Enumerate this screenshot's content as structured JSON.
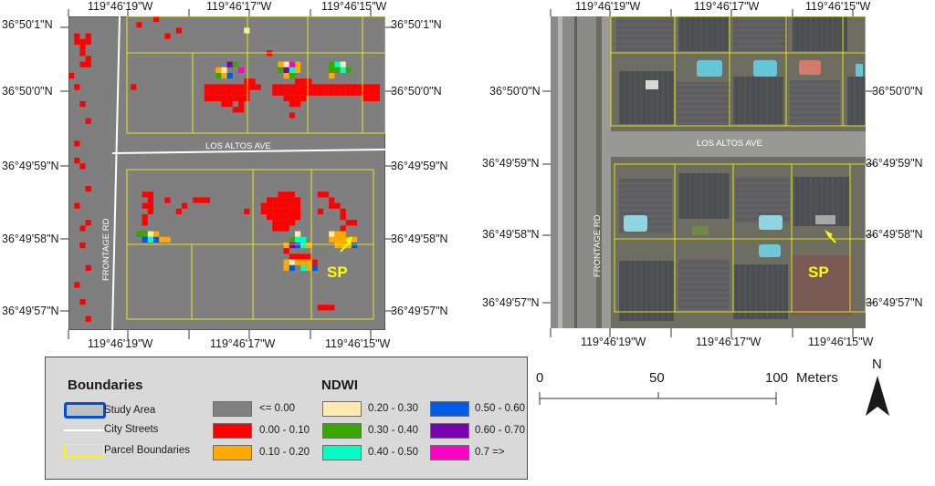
{
  "left_map": {
    "lon_top": [
      "119°46'19\"W",
      "119°46'17\"W",
      "119°46'15\"W"
    ],
    "lon_bottom": [
      "119°46'19\"W",
      "119°46'17\"W",
      "119°46'15\"W"
    ],
    "lat_left": [
      "36°50'1\"N",
      "36°50'0\"N",
      "36°49'59\"N",
      "36°49'58\"N",
      "36°49'57\"N"
    ],
    "lat_right": [
      "36°50'1\"N",
      "36°50'0\"N",
      "36°49'59\"N",
      "36°49'58\"N",
      "36°49'57\"N"
    ],
    "street_ew": "LOS ALTOS AVE",
    "street_ns": "FRONTAGE RD",
    "marker": "SP"
  },
  "right_map": {
    "lon_top": [
      "119°46'19\"W",
      "119°46'17\"W",
      "119°46'15\"W"
    ],
    "lon_bottom": [
      "119°46'19\"W",
      "119°46'17\"W",
      "119°46'15\"W"
    ],
    "lat_left": [
      "36°50'0\"N",
      "36°49'59\"N",
      "36°49'58\"N",
      "36°49'57\"N"
    ],
    "lat_right": [
      "36°50'0\"N",
      "36°49'59\"N",
      "36°49'58\"N",
      "36°49'57\"N"
    ],
    "street_ew": "LOS ALTOS AVE",
    "street_ns": "FRONTAGE RD",
    "marker": "SP"
  },
  "legend": {
    "boundaries_title": "Boundaries",
    "study_area": "Study Area",
    "city_streets": "City Streets",
    "parcel_boundaries": "Parcel Boundaries",
    "ndwi_title": "NDWI",
    "classes": [
      {
        "label": "<= 0.00",
        "color": "#808080"
      },
      {
        "label": "0.00 - 0.10",
        "color": "#ff0000"
      },
      {
        "label": "0.10 - 0.20",
        "color": "#ffaa00"
      },
      {
        "label": "0.20 - 0.30",
        "color": "#ffebaf"
      },
      {
        "label": "0.30 - 0.40",
        "color": "#38a800"
      },
      {
        "label": "0.40 - 0.50",
        "color": "#00ffc5"
      },
      {
        "label": "0.50 - 0.60",
        "color": "#005ce6"
      },
      {
        "label": "0.60 - 0.70",
        "color": "#7a00b3"
      },
      {
        "label": "0.7 =>",
        "color": "#ff00c5"
      }
    ],
    "study_area_color": "#0050d0",
    "street_color": "#ffffff",
    "parcel_color": "#ffff00"
  },
  "scale_bar": {
    "ticks": [
      "0",
      "50",
      "100"
    ],
    "unit": "Meters"
  },
  "north_arrow": {
    "label": "N"
  }
}
